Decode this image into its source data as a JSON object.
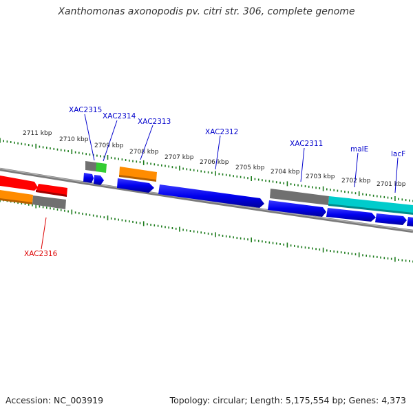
{
  "title": "Xanthomonas axonopodis pv. citri str. 306, complete genome",
  "footer": {
    "accession": "Accession: NC_003919",
    "stats": "Topology: circular; Length: 5,175,554 bp; Genes: 4,373"
  },
  "colors": {
    "ruler": "#1a7a1a",
    "backbone": "#808080",
    "forward_gene": "#0000ee",
    "label_blue": "#0000cc",
    "label_red": "#dd0000",
    "red": "#ff0000",
    "orange": "#ff8c00",
    "gray": "#707070",
    "green": "#33cc33",
    "cyan": "#00cccc"
  },
  "ruler_labels": [
    "2711 kbp",
    "2710 kbp",
    "2709 kbp",
    "2708 kbp",
    "2707 kbp",
    "2706 kbp",
    "2705 kbp",
    "2704 kbp",
    "2703 kbp",
    "2702 kbp",
    "2701 kbp"
  ],
  "gene_labels": [
    {
      "text": "XAC2315",
      "color": "blue"
    },
    {
      "text": "XAC2314",
      "color": "blue"
    },
    {
      "text": "XAC2313",
      "color": "blue"
    },
    {
      "text": "XAC2312",
      "color": "blue"
    },
    {
      "text": "XAC2311",
      "color": "blue"
    },
    {
      "text": "malE",
      "color": "blue"
    },
    {
      "text": "lacF",
      "color": "blue"
    },
    {
      "text": "XAC2316",
      "color": "red"
    }
  ],
  "features": [
    {
      "name": "red-gene",
      "color": "red"
    },
    {
      "name": "orange-gene-left",
      "color": "orange"
    },
    {
      "name": "gray-gene-left",
      "color": "gray"
    },
    {
      "name": "gray-gene-xac2315",
      "color": "gray"
    },
    {
      "name": "green-gene-xac2314",
      "color": "green"
    },
    {
      "name": "orange-gene-xac2313",
      "color": "orange"
    },
    {
      "name": "gray-gene-xac2311",
      "color": "gray"
    },
    {
      "name": "cyan-gene-male",
      "color": "cyan"
    }
  ]
}
